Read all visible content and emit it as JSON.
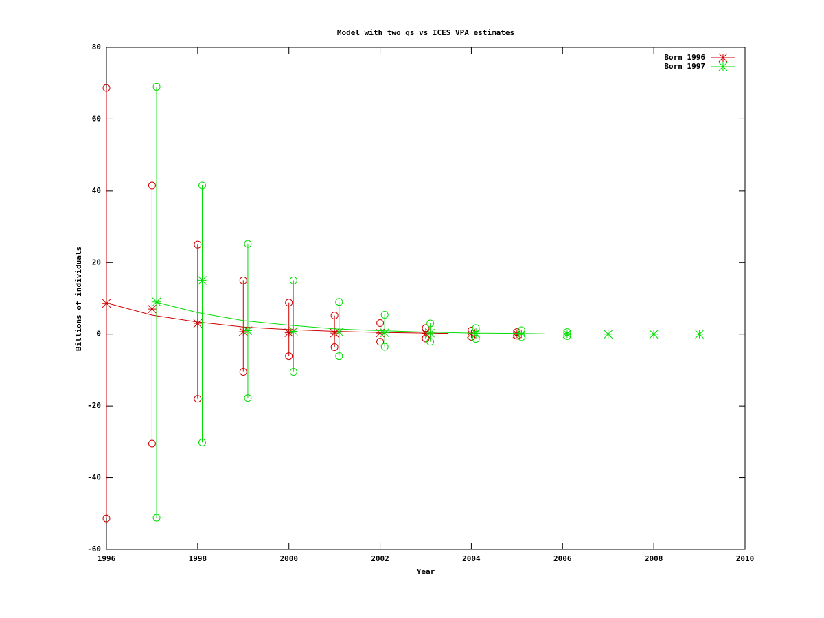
{
  "chart_data": {
    "type": "errorbar",
    "title": "Model with two qs vs ICES VPA estimates",
    "x_label": "Year",
    "y_label": "Billions of individuals",
    "xlim": [
      1996,
      2010
    ],
    "xticks": [
      1996,
      1998,
      2000,
      2002,
      2004,
      2006,
      2008,
      2010
    ],
    "ylim": [
      -60,
      80
    ],
    "yticks": [
      -60,
      -40,
      -20,
      0,
      20,
      40,
      60,
      80
    ],
    "legend": "top-right",
    "series": [
      {
        "name": "Born 1996",
        "color": "#cc0000",
        "x": [
          1996,
          1997,
          1998,
          1999,
          2000,
          2001,
          2002,
          2003,
          2004,
          2005
        ],
        "values": [
          8.6,
          7.0,
          3.0,
          0.7,
          0.4,
          0.3,
          0.3,
          0.2,
          0.1,
          0.1
        ],
        "lower": [
          -51.4,
          -30.5,
          -18.0,
          -10.5,
          -6.1,
          -3.6,
          -2.1,
          -1.2,
          -0.7,
          -0.4
        ],
        "upper": [
          68.7,
          41.5,
          25.0,
          15.0,
          8.8,
          5.2,
          3.1,
          1.7,
          1.0,
          0.6
        ],
        "model_x": [
          1996,
          1997,
          1998,
          1999,
          2000,
          2001,
          2002,
          2003,
          2003.5
        ],
        "model_values": [
          8.7,
          5.3,
          3.4,
          2.0,
          1.3,
          0.8,
          0.5,
          0.3,
          0.2
        ]
      },
      {
        "name": "Born 1997",
        "color": "#00dd00",
        "x": [
          1997.1,
          1998.1,
          1999.1,
          2000.1,
          2001.1,
          2002.1,
          2003.1,
          2004.1,
          2005.1,
          2006.1,
          2007,
          2008,
          2009
        ],
        "values": [
          9.0,
          15.0,
          1.0,
          0.8,
          0.6,
          0.4,
          0.3,
          0.2,
          0.1,
          0.1,
          0,
          0,
          0
        ],
        "lower": [
          -51.2,
          -30.2,
          -17.8,
          -10.5,
          -6.1,
          -3.5,
          -2.1,
          -1.3,
          -0.8,
          -0.5,
          null,
          null,
          null
        ],
        "upper": [
          69.0,
          41.5,
          25.2,
          15.0,
          9.0,
          5.4,
          3.0,
          1.7,
          1.1,
          0.6,
          null,
          null,
          null
        ],
        "model_x": [
          1997.1,
          1998,
          1999,
          2000,
          2001,
          2002,
          2003,
          2004,
          2005,
          2005.6
        ],
        "model_values": [
          8.9,
          6.0,
          3.8,
          2.5,
          1.5,
          1.0,
          0.6,
          0.3,
          0.2,
          0.1
        ]
      }
    ]
  }
}
